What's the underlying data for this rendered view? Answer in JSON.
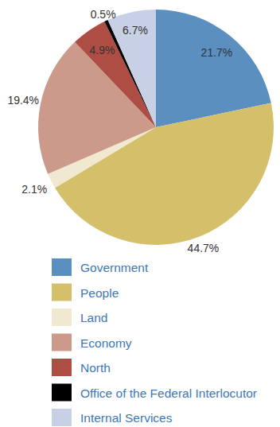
{
  "chart_data": {
    "type": "pie",
    "categories": [
      "Government",
      "People",
      "Land",
      "Economy",
      "North",
      "Office of the Federal Interlocutor",
      "Internal Services"
    ],
    "values": [
      21.7,
      44.7,
      2.1,
      19.4,
      4.9,
      0.5,
      6.7
    ],
    "value_labels": [
      "21.7%",
      "44.7%",
      "2.1%",
      "19.4%",
      "4.9%",
      "0.5%",
      "6.7%"
    ],
    "colors": [
      "#5b8fc0",
      "#d4c06a",
      "#f1e8d2",
      "#cc9a8b",
      "#ad4d43",
      "#000000",
      "#c7d0e5"
    ],
    "data_labels": true,
    "legend": "bottom"
  }
}
